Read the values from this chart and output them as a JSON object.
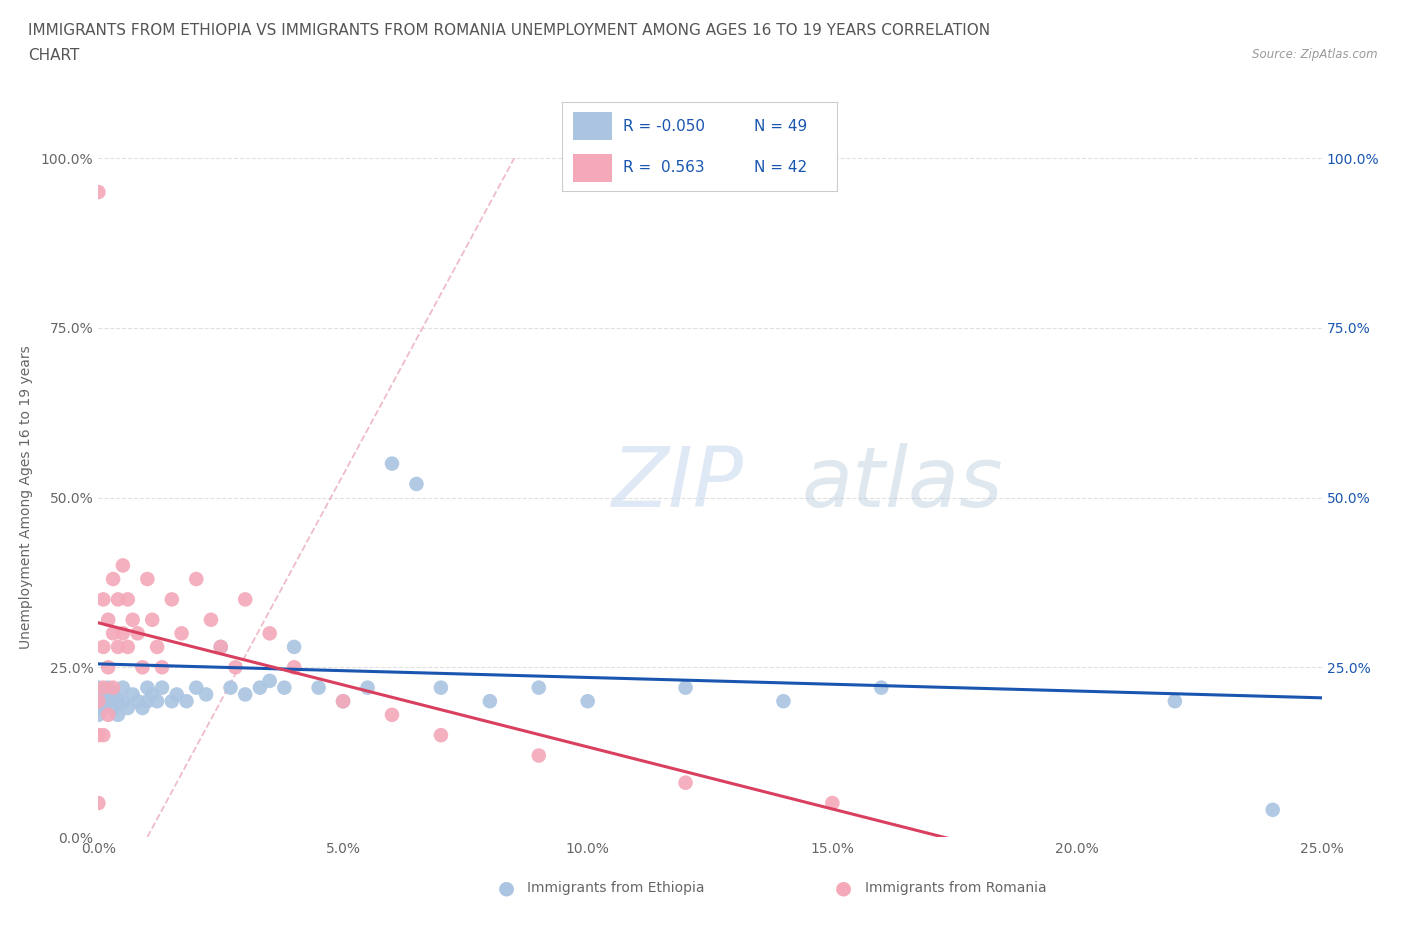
{
  "title_line1": "IMMIGRANTS FROM ETHIOPIA VS IMMIGRANTS FROM ROMANIA UNEMPLOYMENT AMONG AGES 16 TO 19 YEARS CORRELATION",
  "title_line2": "CHART",
  "source": "Source: ZipAtlas.com",
  "ylabel": "Unemployment Among Ages 16 to 19 years",
  "xlim": [
    0.0,
    0.25
  ],
  "ylim": [
    0.0,
    1.0
  ],
  "xticks": [
    0.0,
    0.05,
    0.1,
    0.15,
    0.2,
    0.25
  ],
  "yticks": [
    0.0,
    0.25,
    0.5,
    0.75,
    1.0
  ],
  "xticklabels": [
    "0.0%",
    "5.0%",
    "10.0%",
    "15.0%",
    "20.0%",
    "25.0%"
  ],
  "yticklabels": [
    "0.0%",
    "25.0%",
    "50.0%",
    "75.0%",
    "100.0%"
  ],
  "right_yticklabels": [
    "25.0%",
    "50.0%",
    "75.0%",
    "100.0%"
  ],
  "ethiopia_color": "#aac4e2",
  "romania_color": "#f4a8b8",
  "ethiopia_line_color": "#1a56b0",
  "romania_line_color": "#d94060",
  "dashed_color": "#e8a0b0",
  "R_ethiopia": -0.05,
  "N_ethiopia": 49,
  "R_romania": 0.563,
  "N_romania": 42,
  "watermark_top": "ZIP",
  "watermark_bot": "atlas",
  "background_color": "#ffffff",
  "grid_color": "#e0e0e0",
  "title_fontsize": 11,
  "label_fontsize": 10,
  "tick_fontsize": 10,
  "eth_x": [
    0.0,
    0.0,
    0.0,
    0.001,
    0.001,
    0.001,
    0.002,
    0.002,
    0.003,
    0.003,
    0.004,
    0.004,
    0.005,
    0.005,
    0.006,
    0.007,
    0.008,
    0.009,
    0.01,
    0.01,
    0.011,
    0.012,
    0.013,
    0.015,
    0.016,
    0.018,
    0.02,
    0.022,
    0.025,
    0.027,
    0.03,
    0.033,
    0.035,
    0.038,
    0.04,
    0.045,
    0.05,
    0.055,
    0.06,
    0.065,
    0.07,
    0.08,
    0.09,
    0.1,
    0.12,
    0.14,
    0.16,
    0.22,
    0.24
  ],
  "eth_y": [
    0.2,
    0.18,
    0.22,
    0.2,
    0.19,
    0.21,
    0.2,
    0.22,
    0.19,
    0.21,
    0.2,
    0.18,
    0.22,
    0.2,
    0.19,
    0.21,
    0.2,
    0.19,
    0.22,
    0.2,
    0.21,
    0.2,
    0.22,
    0.2,
    0.21,
    0.2,
    0.22,
    0.21,
    0.28,
    0.22,
    0.21,
    0.22,
    0.23,
    0.22,
    0.28,
    0.22,
    0.2,
    0.22,
    0.55,
    0.52,
    0.22,
    0.2,
    0.22,
    0.2,
    0.22,
    0.2,
    0.22,
    0.2,
    0.04
  ],
  "rom_x": [
    0.0,
    0.0,
    0.0,
    0.0,
    0.001,
    0.001,
    0.001,
    0.001,
    0.002,
    0.002,
    0.002,
    0.003,
    0.003,
    0.003,
    0.004,
    0.004,
    0.005,
    0.005,
    0.006,
    0.006,
    0.007,
    0.008,
    0.009,
    0.01,
    0.011,
    0.012,
    0.013,
    0.015,
    0.017,
    0.02,
    0.023,
    0.025,
    0.028,
    0.03,
    0.035,
    0.04,
    0.05,
    0.06,
    0.07,
    0.09,
    0.12,
    0.15
  ],
  "rom_y": [
    0.95,
    0.2,
    0.15,
    0.05,
    0.35,
    0.28,
    0.22,
    0.15,
    0.32,
    0.25,
    0.18,
    0.38,
    0.3,
    0.22,
    0.35,
    0.28,
    0.4,
    0.3,
    0.35,
    0.28,
    0.32,
    0.3,
    0.25,
    0.38,
    0.32,
    0.28,
    0.25,
    0.35,
    0.3,
    0.38,
    0.32,
    0.28,
    0.25,
    0.35,
    0.3,
    0.25,
    0.2,
    0.18,
    0.15,
    0.12,
    0.08,
    0.05
  ]
}
